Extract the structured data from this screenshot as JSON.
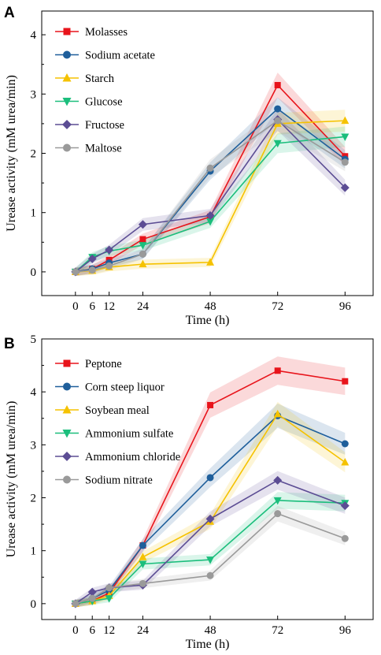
{
  "chart_data": [
    {
      "type": "line",
      "panel_label": "A",
      "xlabel": "Time (h)",
      "ylabel": "Urease activity (mM urea/min)",
      "x": [
        0,
        6,
        12,
        24,
        48,
        72,
        96
      ],
      "x_tick_labels": [
        "0",
        "6",
        "12",
        "24",
        "48",
        "72",
        "96"
      ],
      "xlim": [
        -12,
        106
      ],
      "ylim": [
        -0.4,
        4.4
      ],
      "y_ticks": [
        0,
        1,
        2,
        3,
        4
      ],
      "y_tick_labels": [
        "0",
        "1",
        "2",
        "3",
        "4"
      ],
      "legend_position": "top-left",
      "error_bands": true,
      "series": [
        {
          "name": "Molasses",
          "color": "#e8141b",
          "marker": "square",
          "values": [
            0,
            0.05,
            0.2,
            0.55,
            0.93,
            3.15,
            1.95
          ]
        },
        {
          "name": "Sodium acetate",
          "color": "#1f5f9b",
          "marker": "circle",
          "values": [
            0,
            0.05,
            0.15,
            0.3,
            1.7,
            2.75,
            1.9
          ]
        },
        {
          "name": "Starch",
          "color": "#f5c200",
          "marker": "triangle-up",
          "values": [
            0,
            0.02,
            0.08,
            0.13,
            0.16,
            2.5,
            2.55
          ]
        },
        {
          "name": "Glucose",
          "color": "#1bbe7c",
          "marker": "triangle-down",
          "values": [
            0,
            0.25,
            0.35,
            0.45,
            0.85,
            2.17,
            2.28
          ]
        },
        {
          "name": "Fructose",
          "color": "#5c4d94",
          "marker": "diamond",
          "values": [
            0,
            0.22,
            0.37,
            0.8,
            0.95,
            2.57,
            1.42
          ]
        },
        {
          "name": "Maltose",
          "color": "#9a9a9a",
          "marker": "circle",
          "values": [
            0,
            0.03,
            0.1,
            0.3,
            1.75,
            2.55,
            1.85
          ]
        }
      ]
    },
    {
      "type": "line",
      "panel_label": "B",
      "xlabel": "Time (h)",
      "ylabel": "Urease activity (mM urea/min)",
      "x": [
        0,
        6,
        12,
        24,
        48,
        72,
        96
      ],
      "x_tick_labels": [
        "0",
        "6",
        "12",
        "24",
        "48",
        "72",
        "96"
      ],
      "xlim": [
        -12,
        106
      ],
      "ylim": [
        -0.3,
        5
      ],
      "y_ticks": [
        0,
        1,
        2,
        3,
        4,
        5
      ],
      "y_tick_labels": [
        "0",
        "1",
        "2",
        "3",
        "4",
        "5"
      ],
      "legend_position": "top-left",
      "error_bands": true,
      "series": [
        {
          "name": "Peptone",
          "color": "#e8141b",
          "marker": "square",
          "values": [
            0,
            0.05,
            0.2,
            1.1,
            3.75,
            4.4,
            4.2
          ]
        },
        {
          "name": "Corn steep liquor",
          "color": "#1f5f9b",
          "marker": "circle",
          "values": [
            0,
            0.1,
            0.25,
            1.1,
            2.38,
            3.55,
            3.02
          ]
        },
        {
          "name": "Soybean meal",
          "color": "#f5c200",
          "marker": "triangle-up",
          "values": [
            0,
            0.05,
            0.15,
            0.88,
            1.55,
            3.58,
            2.67
          ]
        },
        {
          "name": "Ammonium sulfate",
          "color": "#1bbe7c",
          "marker": "triangle-down",
          "values": [
            0,
            0.05,
            0.1,
            0.75,
            0.83,
            1.95,
            1.9
          ]
        },
        {
          "name": "Ammonium chloride",
          "color": "#5c4d94",
          "marker": "diamond",
          "values": [
            0,
            0.22,
            0.3,
            0.35,
            1.6,
            2.33,
            1.85
          ]
        },
        {
          "name": "Sodium nitrate",
          "color": "#9a9a9a",
          "marker": "circle",
          "values": [
            0,
            0.1,
            0.3,
            0.38,
            0.53,
            1.7,
            1.23
          ]
        }
      ]
    }
  ]
}
